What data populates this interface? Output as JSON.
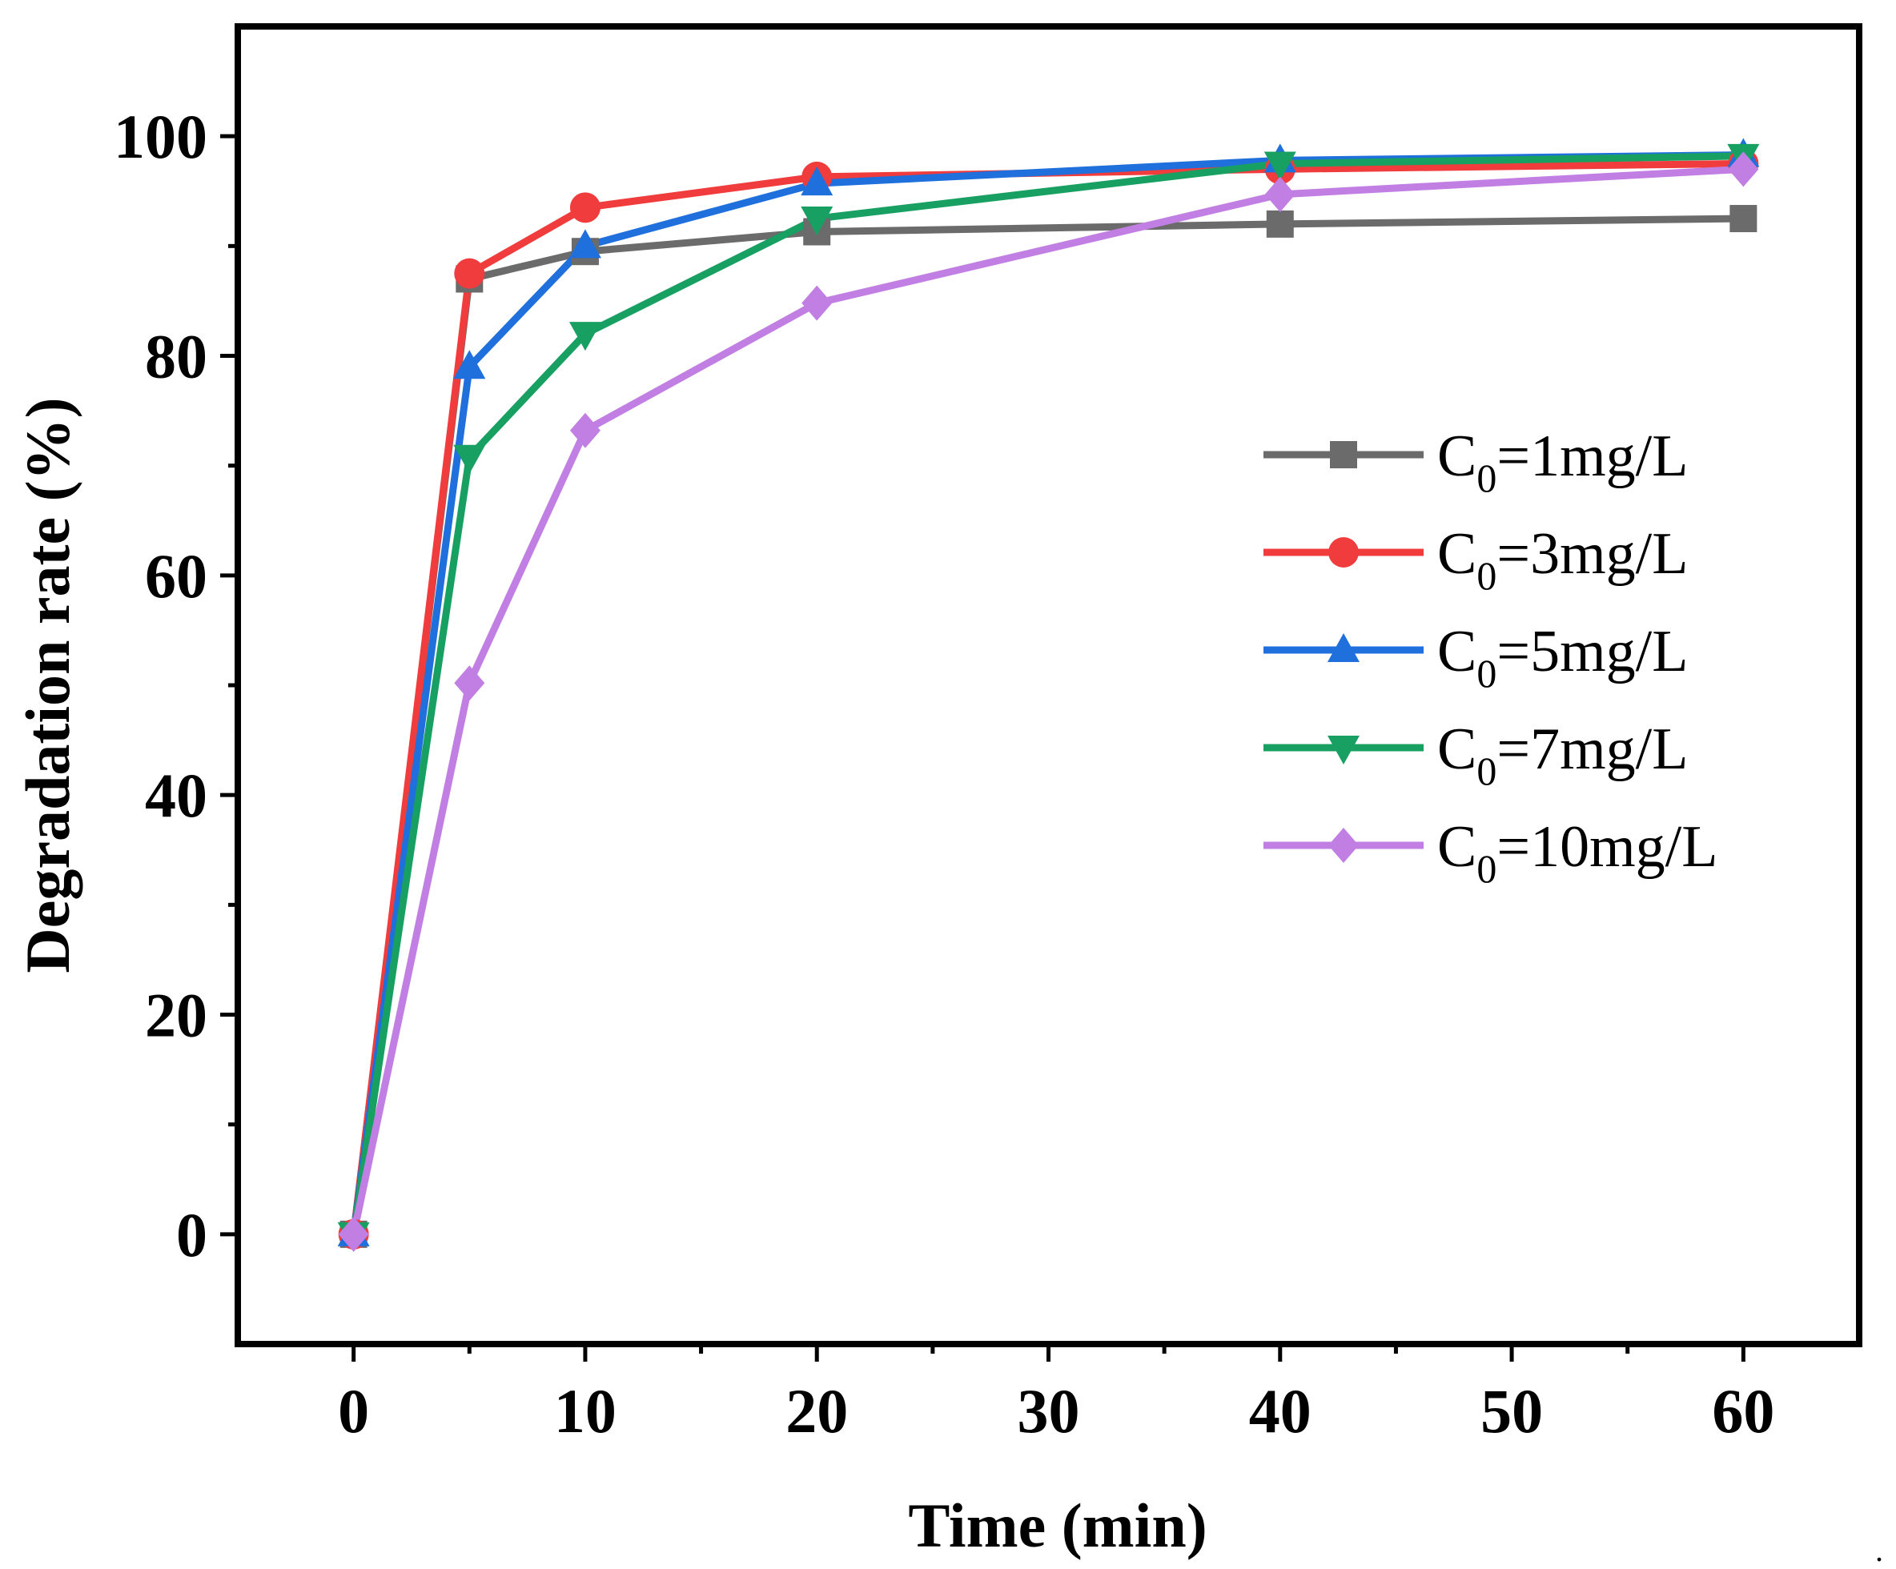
{
  "chart_data": {
    "type": "line",
    "title": "",
    "xlabel": "Time (min)",
    "ylabel": "Degradation rate (%)",
    "xlim": [
      -5,
      65
    ],
    "ylim": [
      -10,
      110
    ],
    "x_ticks": [
      0,
      10,
      20,
      30,
      40,
      50,
      60
    ],
    "x_tick_labels": [
      "0",
      "10",
      "20",
      "30",
      "40",
      "50",
      "60"
    ],
    "y_ticks": [
      0,
      20,
      40,
      60,
      80,
      100
    ],
    "y_tick_labels": [
      "0",
      "20",
      "40",
      "60",
      "80",
      "100"
    ],
    "grid": false,
    "legend_position": "right",
    "x": [
      0,
      5,
      10,
      20,
      40,
      60
    ],
    "series": [
      {
        "name": "C0=1mg/L",
        "label_main": "C",
        "label_sub": "0",
        "label_rest": "=1mg/L",
        "color": "#6b6b6b",
        "marker": "square",
        "values": [
          0,
          87.0,
          89.5,
          91.3,
          92.0,
          92.5
        ]
      },
      {
        "name": "C0=3mg/L",
        "label_main": "C",
        "label_sub": "0",
        "label_rest": "=3mg/L",
        "color": "#f03c3c",
        "marker": "circle",
        "values": [
          0,
          87.5,
          93.5,
          96.3,
          97.0,
          97.5
        ]
      },
      {
        "name": "C0=5mg/L",
        "label_main": "C",
        "label_sub": "0",
        "label_rest": "=5mg/L",
        "color": "#1f6fdc",
        "marker": "triangle-up",
        "values": [
          0,
          79.0,
          90.0,
          95.7,
          97.8,
          98.3
        ]
      },
      {
        "name": "C0=7mg/L",
        "label_main": "C",
        "label_sub": "0",
        "label_rest": "=7mg/L",
        "color": "#18a062",
        "marker": "triangle-down",
        "values": [
          0,
          70.8,
          82.0,
          92.5,
          97.5,
          98.2
        ]
      },
      {
        "name": "C0=10mg/L",
        "label_main": "C",
        "label_sub": "0",
        "label_rest": "=10mg/L",
        "color": "#c17fe3",
        "marker": "diamond",
        "values": [
          0,
          50.2,
          73.2,
          84.8,
          94.7,
          97.0
        ]
      }
    ],
    "footnote": "."
  }
}
